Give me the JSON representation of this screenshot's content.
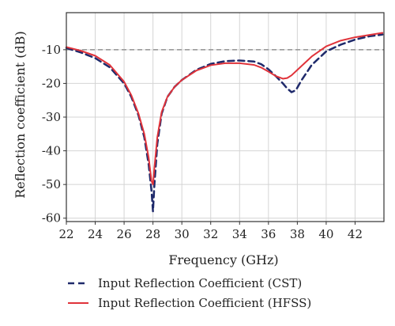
{
  "chart_data": {
    "type": "line",
    "xlabel": "Frequency (GHz)",
    "ylabel": "Reflection coefficient (dB)",
    "xlim": [
      22,
      44
    ],
    "ylim": [
      -61,
      1
    ],
    "x_ticks": [
      "22",
      "24",
      "26",
      "28",
      "30",
      "32",
      "34",
      "36",
      "38",
      "40",
      "42"
    ],
    "y_ticks": [
      "-10",
      "-20",
      "-30",
      "-40",
      "-50",
      "-60"
    ],
    "x_tick_values": [
      22,
      24,
      26,
      28,
      30,
      32,
      34,
      36,
      38,
      40,
      42
    ],
    "y_tick_values": [
      -10,
      -20,
      -30,
      -40,
      -50,
      -60
    ],
    "grid": true,
    "reference_line": {
      "y": -10,
      "color": "#9a9a9a",
      "style": "dashed"
    },
    "legend_position": "bottom",
    "series": [
      {
        "name": "Input Reflection Coefficient (CST)",
        "color": "#1f2a6b",
        "style": "dashed",
        "x": [
          22,
          23,
          24,
          25,
          26,
          26.5,
          27,
          27.4,
          27.7,
          27.9,
          28.0,
          28.1,
          28.3,
          28.6,
          29,
          29.5,
          30,
          31,
          32,
          33,
          34,
          35,
          35.5,
          36,
          36.5,
          37,
          37.3,
          37.6,
          37.9,
          38.3,
          39,
          40,
          41,
          42,
          43,
          43.9
        ],
        "y": [
          -9.5,
          -10.8,
          -12.5,
          -15.2,
          -20,
          -24,
          -29.5,
          -36,
          -44,
          -52,
          -58,
          -50,
          -38,
          -29,
          -24,
          -21,
          -19,
          -16,
          -14.2,
          -13.4,
          -13.2,
          -13.5,
          -14.3,
          -15.8,
          -17.8,
          -20,
          -21.5,
          -22.6,
          -22,
          -19,
          -14.5,
          -10.5,
          -8.5,
          -7,
          -6,
          -5.5
        ]
      },
      {
        "name": "Input Reflection Coefficient (HFSS)",
        "color": "#e0333a",
        "style": "solid",
        "x": [
          22,
          23,
          24,
          25,
          26,
          26.5,
          27,
          27.4,
          27.7,
          27.9,
          28.0,
          28.1,
          28.3,
          28.6,
          29,
          29.5,
          30,
          31,
          32,
          33,
          34,
          35,
          35.5,
          36,
          36.5,
          37,
          37.3,
          37.6,
          38,
          38.5,
          39,
          40,
          41,
          42,
          43,
          43.9
        ],
        "y": [
          -9.2,
          -10.3,
          -11.8,
          -14.5,
          -19.5,
          -23.5,
          -29,
          -35,
          -42,
          -49,
          -50,
          -45,
          -36,
          -28.5,
          -24,
          -21,
          -19,
          -16.2,
          -14.6,
          -14,
          -14,
          -14.5,
          -15.3,
          -16.5,
          -17.8,
          -18.6,
          -18.4,
          -17.6,
          -16,
          -14,
          -12,
          -9,
          -7.3,
          -6.3,
          -5.6,
          -5
        ]
      }
    ]
  }
}
